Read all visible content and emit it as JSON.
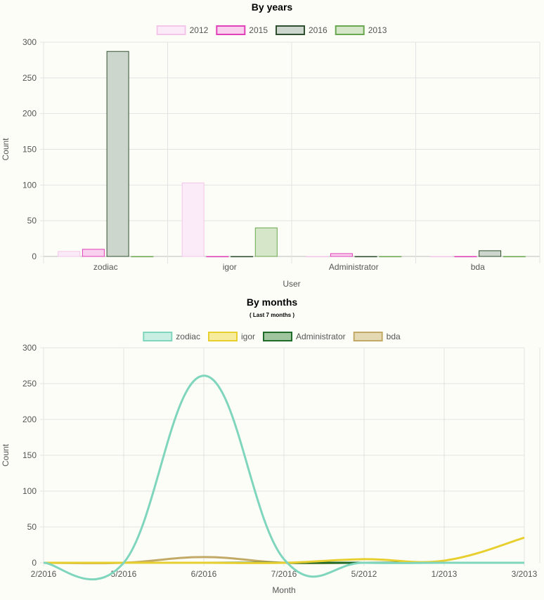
{
  "chart_data": [
    {
      "type": "bar",
      "title": "By years",
      "xlabel": "User",
      "ylabel": "Count",
      "categories": [
        "zodiac",
        "igor",
        "Administrator",
        "bda"
      ],
      "ylim": [
        0,
        300
      ],
      "yticks": [
        0,
        50,
        100,
        150,
        200,
        250,
        300
      ],
      "grid": true,
      "legend_position": "top",
      "series": [
        {
          "name": "2012",
          "values": [
            7,
            103,
            0,
            0
          ],
          "fill": "#fbeaf7",
          "stroke": "#f4c6ea"
        },
        {
          "name": "2015",
          "values": [
            10,
            0,
            4,
            0
          ],
          "fill": "#f9d0ee",
          "stroke": "#e040b8"
        },
        {
          "name": "2016",
          "values": [
            287,
            0,
            0,
            8
          ],
          "fill": "#cdd6cc",
          "stroke": "#2f4f2f"
        },
        {
          "name": "2013",
          "values": [
            0,
            40,
            0,
            0
          ],
          "fill": "#d6e6c9",
          "stroke": "#6aa84f"
        }
      ]
    },
    {
      "type": "line",
      "title": "By months",
      "subtitle": "( Last 7 months )",
      "xlabel": "Month",
      "ylabel": "Count",
      "categories": [
        "2/2016",
        "5/2016",
        "6/2016",
        "7/2016",
        "5/2012",
        "1/2013",
        "3/2013"
      ],
      "ylim": [
        0,
        300
      ],
      "yticks": [
        0,
        50,
        100,
        150,
        200,
        250,
        300
      ],
      "grid": true,
      "legend_position": "top",
      "series": [
        {
          "name": "zodiac",
          "values": [
            0,
            0,
            261,
            5,
            0,
            0,
            0
          ],
          "stroke": "#7fd6bd",
          "fill": "#c9efe3"
        },
        {
          "name": "igor",
          "values": [
            0,
            0,
            0,
            0,
            5,
            3,
            35
          ],
          "stroke": "#e8cf30",
          "fill": "#f7ec9e"
        },
        {
          "name": "Administrator",
          "values": [
            0,
            0,
            0,
            0,
            0,
            0,
            0
          ],
          "stroke": "#1e6b2a",
          "fill": "#9fc59e"
        },
        {
          "name": "bda",
          "values": [
            0,
            0,
            8,
            0,
            0,
            0,
            0
          ],
          "stroke": "#c2aa66",
          "fill": "#e5d9b3"
        }
      ]
    }
  ]
}
